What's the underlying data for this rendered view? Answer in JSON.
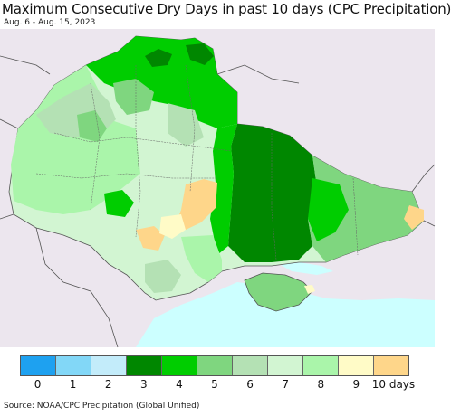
{
  "header": {
    "title": "Maximum Consecutive Dry Days in past 10 days (CPC Precipitation)",
    "subtitle": "Aug. 6 - Aug. 15, 2023"
  },
  "legend": {
    "colors": [
      "#1ea1f0",
      "#82d7f7",
      "#c3ecfa",
      "#008700",
      "#00cd00",
      "#7fd67f",
      "#b4e1b4",
      "#d2f5d2",
      "#aaf5aa",
      "#fffbc7",
      "#fed68a"
    ],
    "labels": [
      "0",
      "1",
      "2",
      "3",
      "4",
      "5",
      "6",
      "7",
      "8",
      "9",
      "10 days"
    ]
  },
  "source": "Source: NOAA/CPC Precipitation (Global Unified)"
}
